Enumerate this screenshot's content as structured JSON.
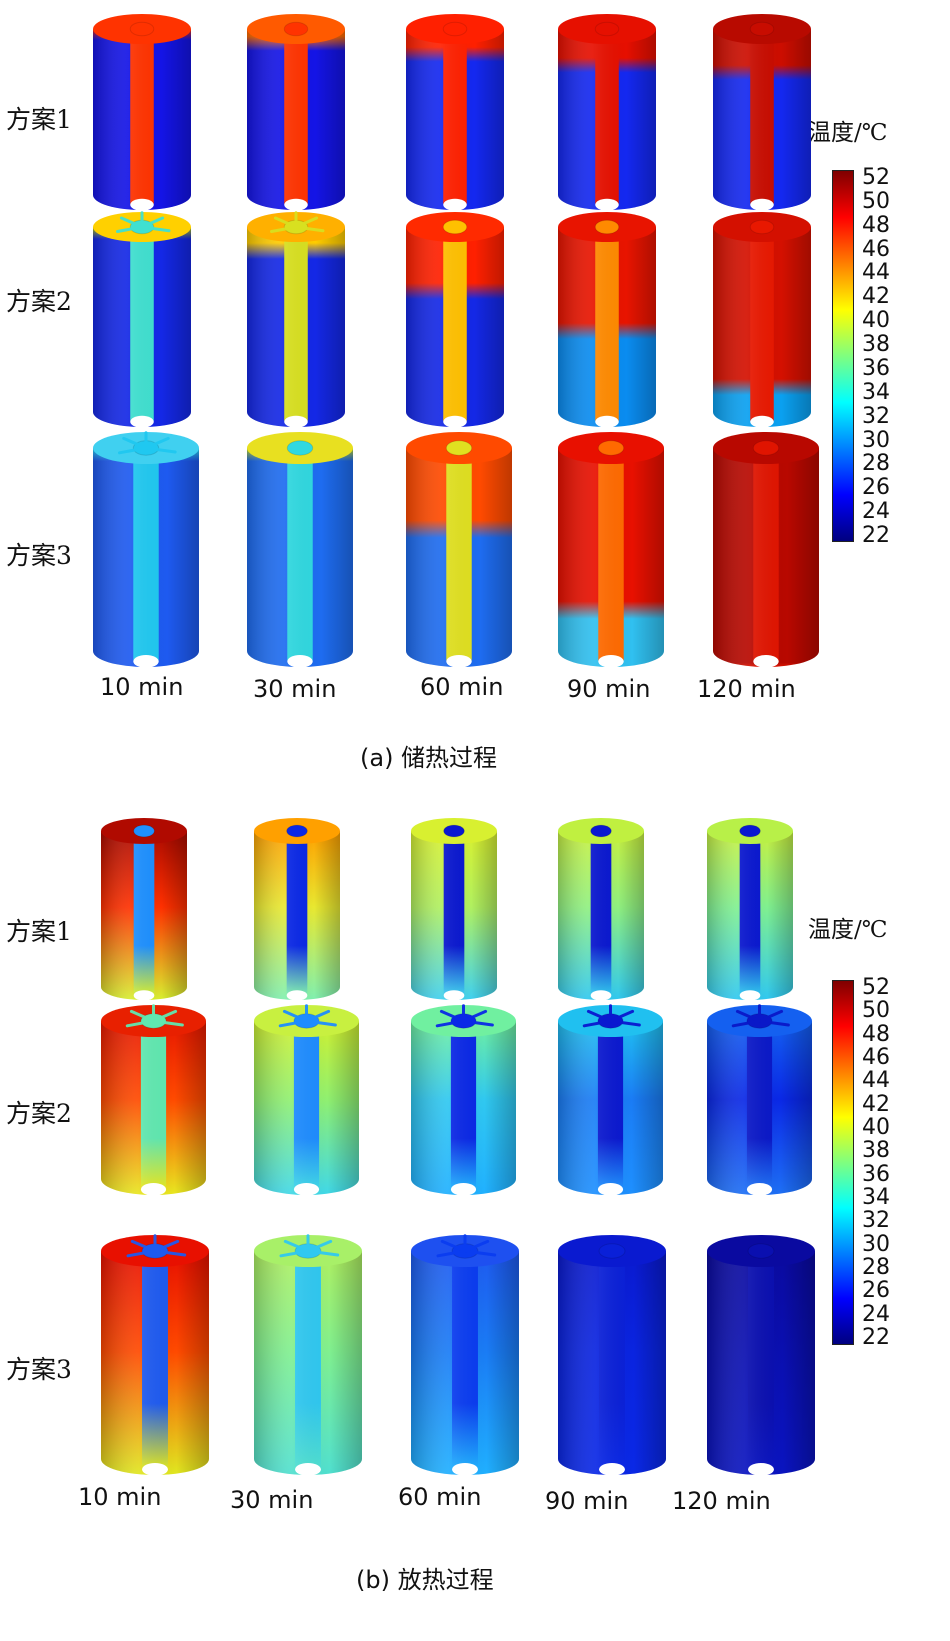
{
  "colorbar": {
    "title": "温度/℃",
    "ticks": [
      "52",
      "50",
      "48",
      "46",
      "44",
      "42",
      "40",
      "38",
      "36",
      "34",
      "32",
      "30",
      "28",
      "26",
      "24",
      "22"
    ],
    "range": [
      22,
      52
    ],
    "colormap": [
      "#00007f",
      "#0000ff",
      "#007fff",
      "#00ffff",
      "#7fff7f",
      "#ffff00",
      "#ff7f00",
      "#ff0000",
      "#7f0000"
    ]
  },
  "times": [
    "10 min",
    "30 min",
    "60 min",
    "90 min",
    "120 min"
  ],
  "schemes": [
    "方案1",
    "方案2",
    "方案3"
  ],
  "panels": [
    {
      "caption": "(a) 储热过程",
      "schemes": [
        {
          "name": "方案1",
          "cells": [
            {
              "top": "#ff2a00",
              "body": "#1414e6",
              "core": "#ff3300",
              "front": 0.0,
              "cap": "#ff3300",
              "fins": false
            },
            {
              "top": "#ff6a00",
              "body": "#1414e6",
              "core": "#ff3300",
              "front": 0.06,
              "cap": "#ff5a00",
              "fins": false
            },
            {
              "top": "#ff2000",
              "body": "#1428f0",
              "core": "#ff2000",
              "front": 0.12,
              "cap": "#ff2000",
              "fins": false
            },
            {
              "top": "#e60f00",
              "body": "#1428f0",
              "core": "#e61000",
              "front": 0.18,
              "cap": "#e61000",
              "fins": false
            },
            {
              "top": "#cc0d00",
              "body": "#1428f0",
              "core": "#c80c00",
              "front": 0.22,
              "cap": "#b80a00",
              "fins": false
            }
          ]
        },
        {
          "name": "方案2",
          "cells": [
            {
              "top": "#c8e000",
              "body": "#1428e6",
              "core": "#40e0d0",
              "front": 0.0,
              "cap": "#ffd000",
              "fins": true
            },
            {
              "top": "#ffcc00",
              "body": "#1428e6",
              "core": "#d8e020",
              "front": 0.1,
              "cap": "#ffb000",
              "fins": true
            },
            {
              "top": "#ff2000",
              "body": "#1428e6",
              "core": "#ffc000",
              "front": 0.3,
              "cap": "#ff2a00",
              "fins": false
            },
            {
              "top": "#e81400",
              "body": "#0a8cf0",
              "core": "#ff8a00",
              "front": 0.5,
              "cap": "#e81400",
              "fins": false
            },
            {
              "top": "#d41000",
              "body": "#0aa0f0",
              "core": "#e81800",
              "front": 0.78,
              "cap": "#d41000",
              "fins": false
            }
          ]
        },
        {
          "name": "方案3",
          "cells": [
            {
              "top": "#30e8ff",
              "body": "#1e5af0",
              "core": "#20c8f0",
              "front": 0.0,
              "cap": "#40d0f0",
              "fins": true
            },
            {
              "top": "#d8ec20",
              "body": "#1e6cf0",
              "core": "#30d8e0",
              "front": 0.0,
              "cap": "#e8e020",
              "fins": false
            },
            {
              "top": "#ff4a00",
              "body": "#1e6cf0",
              "core": "#e0e020",
              "front": 0.35,
              "cap": "#ff4a00",
              "fins": false
            },
            {
              "top": "#e81000",
              "body": "#30c0f0",
              "core": "#ff6a00",
              "front": 0.72,
              "cap": "#e81000",
              "fins": false
            },
            {
              "top": "#b80800",
              "body": "#e01400",
              "core": "#e01400",
              "front": 1.0,
              "cap": "#b80800",
              "fins": false
            }
          ]
        }
      ]
    },
    {
      "caption": "(b) 放热过程",
      "schemes": [
        {
          "name": "方案1",
          "cells": [
            {
              "top": "#aa0a00",
              "body": "#ff3000",
              "core": "#1e90ff",
              "bottom": "#d8f030",
              "cap": "#b00a00",
              "fins": false
            },
            {
              "top": "#ffa000",
              "body": "#e8e830",
              "core": "#0a28e6",
              "bottom": "#80f0b0",
              "cap": "#ffa000",
              "fins": false
            },
            {
              "top": "#d8f030",
              "body": "#b0f060",
              "core": "#0a18d0",
              "bottom": "#40d0f0",
              "cap": "#d8f030",
              "fins": false
            },
            {
              "top": "#c8f040",
              "body": "#90f080",
              "core": "#0a18d0",
              "bottom": "#30c8f0",
              "cap": "#c0f040",
              "fins": false
            },
            {
              "top": "#c8f040",
              "body": "#80f090",
              "core": "#0a18d0",
              "bottom": "#30c8f0",
              "cap": "#b8f048",
              "fins": false
            }
          ]
        },
        {
          "name": "方案2",
          "cells": [
            {
              "top": "#e81800",
              "body": "#ff4a00",
              "core": "#60e8b0",
              "bottom": "#e8e820",
              "cap": "#e82000",
              "fins": true
            },
            {
              "top": "#d0f030",
              "body": "#90f070",
              "core": "#1e8cff",
              "bottom": "#40d8e8",
              "cap": "#c8f040",
              "fins": true
            },
            {
              "top": "#70f0a0",
              "body": "#30c8f0",
              "core": "#0a28e6",
              "bottom": "#20b0ff",
              "cap": "#70f0a0",
              "fins": true
            },
            {
              "top": "#20c0f0",
              "body": "#1a7cf5",
              "core": "#0a18d0",
              "bottom": "#1e90ff",
              "cap": "#20c0f0",
              "fins": true
            },
            {
              "top": "#1460f0",
              "body": "#0a28e6",
              "core": "#0a18c8",
              "bottom": "#1e70f5",
              "cap": "#1460f0",
              "fins": true
            }
          ]
        },
        {
          "name": "方案3",
          "cells": [
            {
              "top": "#e81000",
              "body": "#ff4a00",
              "core": "#1e5af0",
              "bottom": "#e0e820",
              "cap": "#e81000",
              "fins": true
            },
            {
              "top": "#b0f060",
              "body": "#80f090",
              "core": "#30c8f0",
              "bottom": "#50e0d0",
              "cap": "#a8f068",
              "fins": true
            },
            {
              "top": "#1e5af0",
              "body": "#1a7cf5",
              "core": "#0a3cf0",
              "bottom": "#20b0ff",
              "cap": "#1e50f0",
              "fins": true
            },
            {
              "top": "#0a1ad0",
              "body": "#0a24e0",
              "core": "#0a20d8",
              "bottom": "#0a28e6",
              "cap": "#0a1ad0",
              "fins": false
            },
            {
              "top": "#0a0aa0",
              "body": "#0a0fb0",
              "core": "#0a0fb0",
              "bottom": "#0a14c0",
              "cap": "#0a0aa0",
              "fins": false
            }
          ]
        }
      ]
    }
  ]
}
